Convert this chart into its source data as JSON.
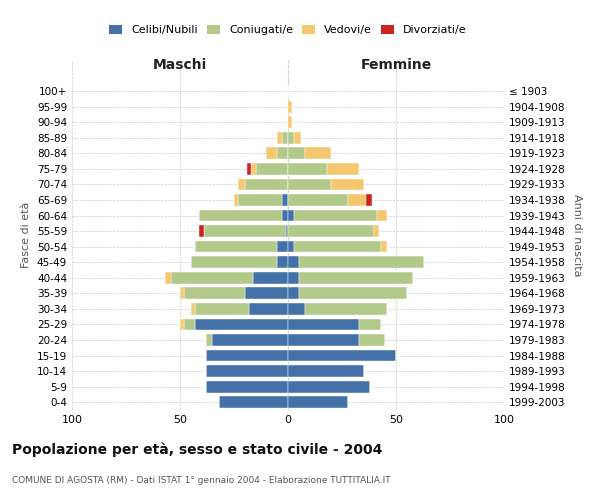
{
  "age_groups": [
    "0-4",
    "5-9",
    "10-14",
    "15-19",
    "20-24",
    "25-29",
    "30-34",
    "35-39",
    "40-44",
    "45-49",
    "50-54",
    "55-59",
    "60-64",
    "65-69",
    "70-74",
    "75-79",
    "80-84",
    "85-89",
    "90-94",
    "95-99",
    "100+"
  ],
  "birth_years": [
    "1999-2003",
    "1994-1998",
    "1989-1993",
    "1984-1988",
    "1979-1983",
    "1974-1978",
    "1969-1973",
    "1964-1968",
    "1959-1963",
    "1954-1958",
    "1949-1953",
    "1944-1948",
    "1939-1943",
    "1934-1938",
    "1929-1933",
    "1924-1928",
    "1919-1923",
    "1914-1918",
    "1909-1913",
    "1904-1908",
    "≤ 1903"
  ],
  "colors": {
    "celibi": "#4472a8",
    "coniugati": "#b2c98a",
    "vedovi": "#f5c76e",
    "divorziati": "#cc2222"
  },
  "maschi": {
    "celibi": [
      32,
      38,
      38,
      38,
      35,
      43,
      18,
      20,
      16,
      5,
      5,
      1,
      3,
      3,
      0,
      0,
      0,
      0,
      0,
      0,
      0
    ],
    "coniugati": [
      0,
      0,
      0,
      0,
      3,
      5,
      25,
      28,
      38,
      40,
      38,
      38,
      38,
      20,
      20,
      15,
      5,
      3,
      0,
      0,
      0
    ],
    "vedovi": [
      0,
      0,
      0,
      0,
      0,
      2,
      2,
      2,
      3,
      0,
      0,
      0,
      0,
      2,
      3,
      2,
      5,
      2,
      0,
      0,
      0
    ],
    "divorziati": [
      0,
      0,
      0,
      0,
      0,
      0,
      0,
      0,
      0,
      0,
      0,
      2,
      0,
      0,
      0,
      2,
      0,
      0,
      0,
      0,
      0
    ]
  },
  "femmine": {
    "nubili": [
      28,
      38,
      35,
      50,
      33,
      33,
      8,
      5,
      5,
      5,
      3,
      0,
      3,
      0,
      0,
      0,
      0,
      0,
      0,
      0,
      0
    ],
    "coniugate": [
      0,
      0,
      0,
      0,
      12,
      10,
      38,
      50,
      53,
      58,
      40,
      40,
      38,
      28,
      20,
      18,
      8,
      3,
      0,
      0,
      0
    ],
    "vedove": [
      0,
      0,
      0,
      0,
      0,
      0,
      0,
      0,
      0,
      0,
      3,
      2,
      5,
      8,
      15,
      15,
      12,
      3,
      2,
      2,
      0
    ],
    "divorziate": [
      0,
      0,
      0,
      0,
      0,
      0,
      0,
      0,
      0,
      0,
      0,
      0,
      0,
      3,
      0,
      0,
      0,
      0,
      0,
      0,
      0
    ]
  },
  "title": "Popolazione per età, sesso e stato civile - 2004",
  "subtitle": "COMUNE DI AGOSTA (RM) - Dati ISTAT 1° gennaio 2004 - Elaborazione TUTTITALIA.IT",
  "ylabel_left": "Fasce di età",
  "ylabel_right": "Anni di nascita",
  "xlabel_left": "Maschi",
  "xlabel_right": "Femmine",
  "xlim": 100,
  "background_color": "#ffffff",
  "grid_color": "#cccccc"
}
